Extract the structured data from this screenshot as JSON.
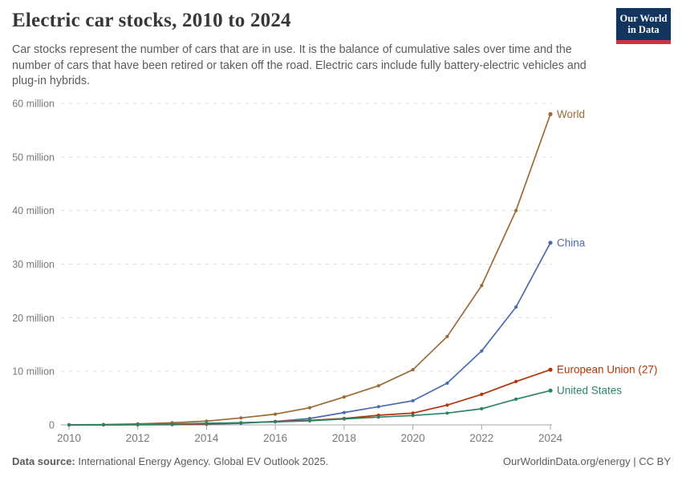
{
  "header": {
    "title": "Electric car stocks, 2010 to 2024",
    "subtitle": "Car stocks represent the number of cars that are in use. It is the balance of cumulative sales over time and the number of cars that have been retired or taken off the road. Electric cars include fully battery-electric vehicles and plug-in hybrids.",
    "logo": {
      "line1": "Our World",
      "line2": "in Data"
    }
  },
  "chart_data": {
    "type": "line",
    "title": "Electric car stocks, 2010 to 2024",
    "unit": "million cars",
    "x": [
      2010,
      2011,
      2012,
      2013,
      2014,
      2015,
      2016,
      2017,
      2018,
      2019,
      2020,
      2021,
      2022,
      2023,
      2024
    ],
    "series": [
      {
        "name": "World",
        "color": "#9A6A33",
        "values": [
          0.02,
          0.06,
          0.2,
          0.4,
          0.7,
          1.3,
          2.0,
          3.2,
          5.2,
          7.3,
          10.3,
          16.5,
          26,
          40,
          58
        ]
      },
      {
        "name": "China",
        "color": "#4C6BB0",
        "values": [
          0.002,
          0.007,
          0.02,
          0.03,
          0.1,
          0.3,
          0.65,
          1.2,
          2.3,
          3.4,
          4.5,
          7.8,
          13.8,
          22,
          34
        ]
      },
      {
        "name": "European Union (27)",
        "color": "#B13507",
        "values": [
          0.005,
          0.02,
          0.05,
          0.1,
          0.2,
          0.4,
          0.6,
          0.85,
          1.2,
          1.8,
          2.2,
          3.7,
          5.7,
          8.1,
          10.3
        ]
      },
      {
        "name": "United States",
        "color": "#2C8465",
        "values": [
          0.004,
          0.02,
          0.07,
          0.17,
          0.3,
          0.41,
          0.56,
          0.76,
          1.1,
          1.45,
          1.75,
          2.2,
          3.0,
          4.8,
          6.4
        ]
      }
    ],
    "xticks": [
      2010,
      2012,
      2014,
      2016,
      2018,
      2020,
      2022,
      2024
    ],
    "yticks": [
      0,
      10,
      20,
      30,
      40,
      50,
      60
    ],
    "ytick_labels": [
      "0",
      "10 million",
      "20 million",
      "30 million",
      "40 million",
      "50 million",
      "60 million"
    ],
    "xlim": [
      2010,
      2024
    ],
    "ylim": [
      0,
      60
    ],
    "grid": "horizontal-dashed",
    "legend": "end-of-line-labels"
  },
  "footer": {
    "source_label": "Data source:",
    "source_text": " International Energy Agency. Global EV Outlook 2025.",
    "site_link": "OurWorldinData.org/energy",
    "separator": " | ",
    "license": "CC BY"
  },
  "colors": {
    "grid": "#dcdcdc",
    "axis": "#a5a5a5",
    "tick_text": "#787878",
    "logo_bg": "#12355E",
    "logo_accent": "#D0313F"
  }
}
